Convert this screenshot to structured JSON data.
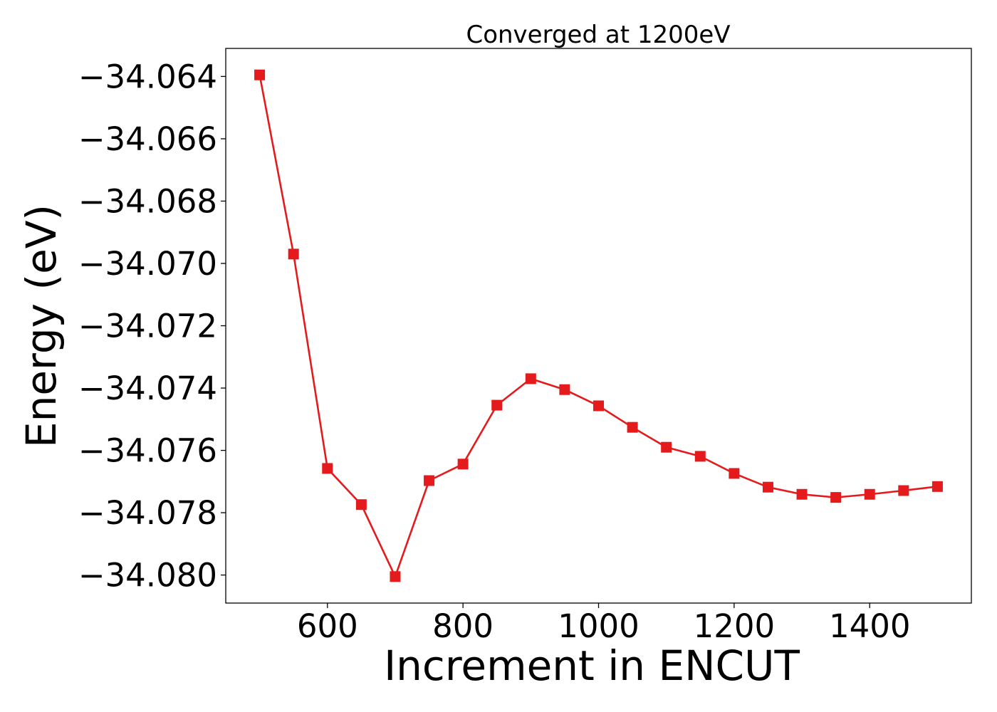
{
  "chart_data": {
    "type": "line",
    "title": "Converged at 1200eV",
    "xlabel": "Increment in ENCUT",
    "ylabel": "Energy (eV)",
    "xlim": [
      450,
      1550
    ],
    "ylim": [
      -34.0809,
      -34.0631
    ],
    "x_ticks": [
      600,
      800,
      1000,
      1200,
      1400
    ],
    "x_tick_labels": [
      "600",
      "800",
      "1000",
      "1200",
      "1400"
    ],
    "y_ticks": [
      -34.064,
      -34.066,
      -34.068,
      -34.07,
      -34.072,
      -34.074,
      -34.076,
      -34.078,
      -34.08
    ],
    "y_tick_labels": [
      "−34.064",
      "−34.066",
      "−34.068",
      "−34.070",
      "−34.072",
      "−34.074",
      "−34.076",
      "−34.078",
      "−34.080"
    ],
    "grid": false,
    "series": [
      {
        "color": "#e41a1c",
        "marker": "square",
        "x": [
          500,
          550,
          600,
          650,
          700,
          750,
          800,
          850,
          900,
          950,
          1000,
          1050,
          1100,
          1150,
          1200,
          1250,
          1300,
          1350,
          1400,
          1450,
          1500
        ],
        "y": [
          -34.06395,
          -34.0697,
          -34.07658,
          -34.07774,
          -34.08005,
          -34.07697,
          -34.07644,
          -34.07455,
          -34.0737,
          -34.07405,
          -34.07457,
          -34.07526,
          -34.0759,
          -34.07619,
          -34.07674,
          -34.07718,
          -34.07741,
          -34.07751,
          -34.07741,
          -34.07729,
          -34.07716
        ]
      }
    ]
  }
}
